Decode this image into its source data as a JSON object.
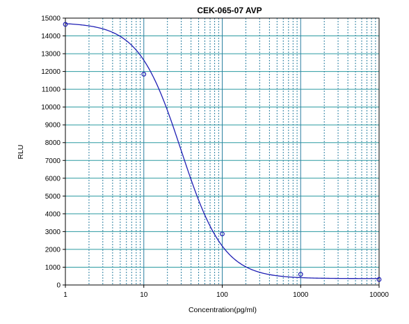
{
  "chart_data": {
    "type": "scatter",
    "title": "CEK-065-07 AVP",
    "xlabel": "Concentration(pg/ml)",
    "ylabel": "RLU",
    "xscale": "log",
    "xlim": [
      1,
      10000
    ],
    "ylim": [
      0,
      15000
    ],
    "grid": true,
    "legend": "none",
    "x_ticks": [
      "1",
      "10",
      "100",
      "1000",
      "10000"
    ],
    "y_ticks": [
      "0",
      "1000",
      "2000",
      "3000",
      "4000",
      "5000",
      "6000",
      "7000",
      "8000",
      "9000",
      "10000",
      "11000",
      "12000",
      "13000",
      "14000",
      "15000"
    ],
    "points": {
      "x": [
        1,
        10,
        100,
        1000,
        10000
      ],
      "y": [
        14650,
        11850,
        2870,
        600,
        310
      ]
    },
    "fit": {
      "model": "4PL",
      "top": 14750,
      "bottom": 360,
      "ec50": 30,
      "hill": 1.6
    },
    "colors": {
      "curve": "#1f1fb4",
      "points": "#1f1fb4",
      "grid_h": "#2a9aa0",
      "grid_v": "#2a7fa0"
    }
  }
}
